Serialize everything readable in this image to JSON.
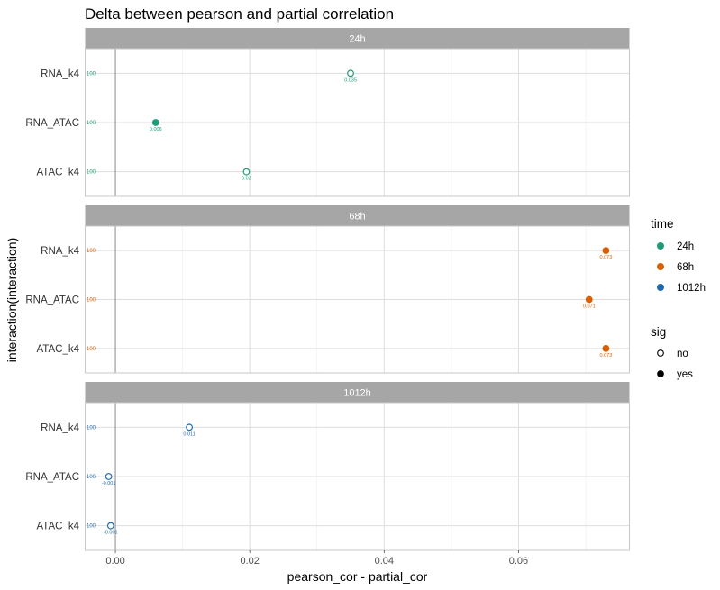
{
  "chart_data": {
    "type": "scatter",
    "title": "Delta between pearson and partial correlation",
    "xlabel": "pearson_cor - partial_cor",
    "ylabel": "interaction(interaction)",
    "xlim": [
      -0.0045,
      0.0765
    ],
    "x_ticks": [
      0.0,
      0.02,
      0.04,
      0.06
    ],
    "x_tick_labels": [
      "0.00",
      "0.02",
      "0.04",
      "0.06"
    ],
    "categories": [
      "RNA_k4",
      "RNA_ATAC",
      "ATAC_k4"
    ],
    "reference_line_x": 0,
    "grid": true,
    "legend_position": "right",
    "colors": {
      "24h": "#1b9e77",
      "68h": "#d95f02",
      "1012h": "#1f6bae"
    },
    "panels": [
      {
        "label": "24h",
        "points": [
          {
            "interaction": "RNA_k4",
            "x": 0.035,
            "sig": "no",
            "n_label": "100",
            "value_label": "0.035"
          },
          {
            "interaction": "RNA_ATAC",
            "x": 0.006,
            "sig": "yes",
            "n_label": "100",
            "value_label": "0.006"
          },
          {
            "interaction": "ATAC_k4",
            "x": 0.0195,
            "sig": "no",
            "n_label": "100",
            "value_label": "0.02"
          }
        ]
      },
      {
        "label": "68h",
        "points": [
          {
            "interaction": "RNA_k4",
            "x": 0.073,
            "sig": "yes",
            "n_label": "100",
            "value_label": "0.073"
          },
          {
            "interaction": "RNA_ATAC",
            "x": 0.0705,
            "sig": "yes",
            "n_label": "100",
            "value_label": "0.071"
          },
          {
            "interaction": "ATAC_k4",
            "x": 0.073,
            "sig": "yes",
            "n_label": "100",
            "value_label": "0.073"
          }
        ]
      },
      {
        "label": "1012h",
        "points": [
          {
            "interaction": "RNA_k4",
            "x": 0.011,
            "sig": "no",
            "n_label": "100",
            "value_label": "0.011"
          },
          {
            "interaction": "RNA_ATAC",
            "x": -0.001,
            "sig": "no",
            "n_label": "100",
            "value_label": "-0.001"
          },
          {
            "interaction": "ATAC_k4",
            "x": -0.0007,
            "sig": "no",
            "n_label": "100",
            "value_label": "-0.001"
          }
        ]
      }
    ],
    "legend": {
      "time": {
        "title": "time",
        "items": [
          "24h",
          "68h",
          "1012h"
        ]
      },
      "sig": {
        "title": "sig",
        "items": [
          "no",
          "yes"
        ]
      }
    }
  }
}
